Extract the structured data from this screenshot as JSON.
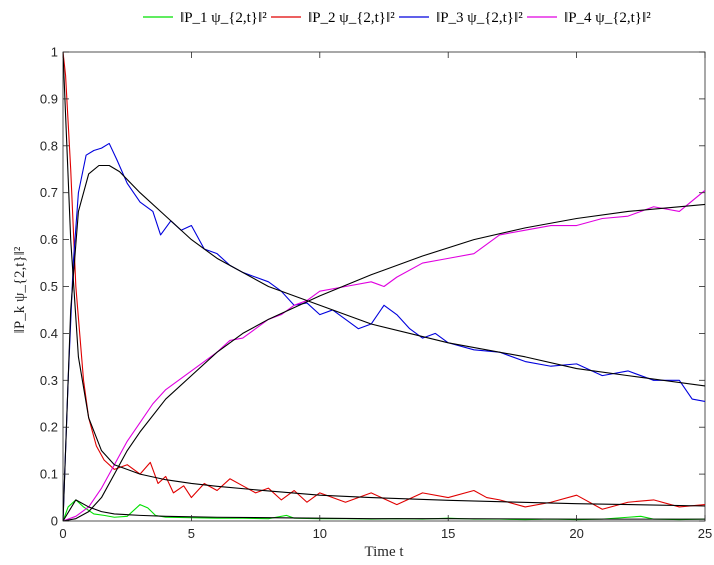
{
  "chart_data": {
    "type": "line",
    "xlabel": "Time t",
    "ylabel": "‖P_k ψ_{2,t}‖²",
    "xlim": [
      0,
      25
    ],
    "ylim": [
      0,
      1
    ],
    "xticks": [
      "0",
      "5",
      "10",
      "15",
      "20",
      "25"
    ],
    "yticks": [
      "0",
      "0.1",
      "0.2",
      "0.3",
      "0.4",
      "0.5",
      "0.6",
      "0.7",
      "0.8",
      "0.9",
      "1"
    ],
    "grid": false,
    "legend": "top, horizontal, outside plot",
    "series": [
      {
        "name": "‖P_1 ψ_{2,t}‖²",
        "color": "#00e000",
        "x": [
          0,
          0.2,
          0.5,
          0.8,
          1.2,
          1.6,
          2,
          2.5,
          3,
          3.3,
          3.6,
          4,
          5,
          6,
          7,
          8,
          8.7,
          9,
          10,
          11,
          12,
          13,
          14,
          15,
          16,
          17,
          18,
          19,
          20,
          21,
          22,
          22.5,
          23,
          24,
          25
        ],
        "y": [
          0,
          0.03,
          0.045,
          0.03,
          0.015,
          0.012,
          0.008,
          0.01,
          0.035,
          0.028,
          0.012,
          0.008,
          0.007,
          0.006,
          0.006,
          0.005,
          0.012,
          0.006,
          0.005,
          0.005,
          0.004,
          0.005,
          0.004,
          0.006,
          0.004,
          0.004,
          0.003,
          0.004,
          0.003,
          0.004,
          0.008,
          0.01,
          0.004,
          0.003,
          0.004
        ]
      },
      {
        "name": "‖P_2 ψ_{2,t}‖²",
        "color": "#e00000",
        "x": [
          0,
          0.1,
          0.3,
          0.5,
          0.8,
          1,
          1.3,
          1.6,
          2,
          2.5,
          3,
          3.4,
          3.7,
          4,
          4.3,
          4.7,
          5,
          5.5,
          6,
          6.5,
          7,
          7.5,
          8,
          8.5,
          9,
          9.5,
          10,
          11,
          12,
          13,
          14,
          15,
          16,
          16.5,
          17,
          18,
          19,
          20,
          21,
          22,
          23,
          24,
          25
        ],
        "y": [
          1,
          0.95,
          0.75,
          0.5,
          0.3,
          0.22,
          0.16,
          0.13,
          0.11,
          0.12,
          0.1,
          0.125,
          0.08,
          0.095,
          0.06,
          0.075,
          0.05,
          0.08,
          0.065,
          0.09,
          0.075,
          0.06,
          0.07,
          0.045,
          0.065,
          0.04,
          0.06,
          0.04,
          0.06,
          0.035,
          0.06,
          0.05,
          0.065,
          0.05,
          0.045,
          0.03,
          0.04,
          0.055,
          0.025,
          0.04,
          0.045,
          0.03,
          0.035
        ]
      },
      {
        "name": "‖P_3 ψ_{2,t}‖²",
        "color": "#0000dd",
        "x": [
          0,
          0.2,
          0.4,
          0.6,
          0.9,
          1.2,
          1.5,
          1.8,
          2.1,
          2.5,
          3,
          3.5,
          3.8,
          4.2,
          4.6,
          5,
          5.5,
          6,
          6.5,
          7,
          7.5,
          8,
          8.5,
          9,
          9.5,
          10,
          10.5,
          11,
          11.5,
          12,
          12.5,
          13,
          13.5,
          14,
          14.5,
          15,
          16,
          17,
          18,
          19,
          20,
          21,
          22,
          23,
          24,
          24.5,
          25
        ],
        "y": [
          0,
          0.3,
          0.55,
          0.7,
          0.78,
          0.79,
          0.795,
          0.805,
          0.77,
          0.72,
          0.68,
          0.66,
          0.61,
          0.64,
          0.62,
          0.63,
          0.58,
          0.57,
          0.545,
          0.53,
          0.52,
          0.51,
          0.49,
          0.46,
          0.465,
          0.44,
          0.45,
          0.43,
          0.41,
          0.42,
          0.46,
          0.44,
          0.41,
          0.39,
          0.4,
          0.38,
          0.365,
          0.36,
          0.34,
          0.33,
          0.335,
          0.31,
          0.32,
          0.3,
          0.3,
          0.26,
          0.255
        ]
      },
      {
        "name": "‖P_4 ψ_{2,t}‖²",
        "color": "#e000e0",
        "x": [
          0,
          0.5,
          1,
          1.5,
          2,
          2.5,
          3,
          3.5,
          4,
          4.5,
          5,
          5.5,
          6,
          6.5,
          7,
          7.5,
          8,
          8.5,
          9,
          9.5,
          10,
          11,
          12,
          12.5,
          13,
          14,
          15,
          16,
          17,
          18,
          19,
          20,
          21,
          22,
          23,
          24,
          25
        ],
        "y": [
          0,
          0.01,
          0.03,
          0.07,
          0.12,
          0.17,
          0.21,
          0.25,
          0.28,
          0.3,
          0.32,
          0.34,
          0.36,
          0.385,
          0.39,
          0.41,
          0.43,
          0.44,
          0.46,
          0.47,
          0.49,
          0.5,
          0.51,
          0.5,
          0.52,
          0.55,
          0.56,
          0.57,
          0.61,
          0.62,
          0.63,
          0.63,
          0.645,
          0.65,
          0.67,
          0.66,
          0.705
        ]
      },
      {
        "name": "",
        "color": "#000000",
        "x": [
          0,
          0.5,
          1,
          1.5,
          2,
          3,
          4,
          5,
          6,
          8,
          10,
          12,
          15,
          20,
          25
        ],
        "y": [
          0,
          0.045,
          0.03,
          0.02,
          0.015,
          0.012,
          0.01,
          0.009,
          0.008,
          0.007,
          0.006,
          0.005,
          0.005,
          0.004,
          0.004
        ]
      },
      {
        "name": "",
        "color": "#000000",
        "x": [
          0,
          0.3,
          0.6,
          1,
          1.5,
          2,
          3,
          4,
          5,
          6,
          8,
          10,
          12,
          15,
          20,
          25
        ],
        "y": [
          1,
          0.6,
          0.35,
          0.22,
          0.15,
          0.12,
          0.1,
          0.088,
          0.08,
          0.074,
          0.064,
          0.055,
          0.05,
          0.044,
          0.037,
          0.032
        ]
      },
      {
        "name": "",
        "color": "#000000",
        "x": [
          0,
          0.3,
          0.6,
          1,
          1.4,
          1.8,
          2.2,
          3,
          4,
          5,
          6,
          8,
          10,
          12,
          15,
          18,
          20,
          22,
          25
        ],
        "y": [
          0,
          0.45,
          0.66,
          0.74,
          0.758,
          0.758,
          0.745,
          0.7,
          0.65,
          0.6,
          0.56,
          0.5,
          0.46,
          0.42,
          0.38,
          0.35,
          0.325,
          0.31,
          0.288
        ]
      },
      {
        "name": "",
        "color": "#000000",
        "x": [
          0,
          0.5,
          1,
          1.5,
          2,
          2.5,
          3,
          4,
          5,
          6,
          7,
          8,
          9,
          10,
          12,
          14,
          16,
          18,
          20,
          22,
          25
        ],
        "y": [
          0,
          0.005,
          0.02,
          0.05,
          0.1,
          0.15,
          0.19,
          0.26,
          0.31,
          0.36,
          0.4,
          0.43,
          0.455,
          0.48,
          0.525,
          0.565,
          0.6,
          0.625,
          0.645,
          0.66,
          0.675
        ]
      }
    ]
  }
}
